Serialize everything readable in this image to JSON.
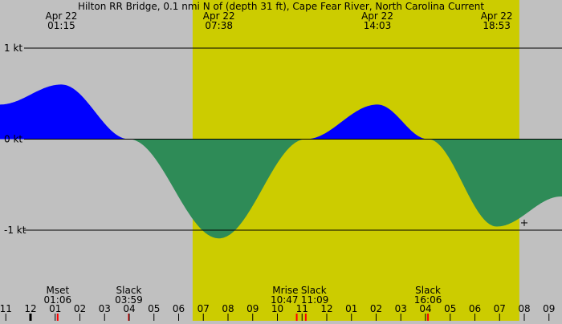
{
  "chart_data": {
    "type": "area",
    "title": "Hilton RR Bridge, 0.1 nmi N of (depth 31 ft), Cape Fear River, North Carolina Current",
    "units": "kt",
    "y_ticks": [
      {
        "value": 1,
        "label": "1 kt"
      },
      {
        "value": 0,
        "label": "0 kt"
      },
      {
        "value": -1,
        "label": "-1 kt"
      }
    ],
    "ylim": [
      -1.7,
      1.5
    ],
    "x_range_hours": [
      -1.24,
      21.5
    ],
    "hour_labels": [
      "11",
      "12",
      "01",
      "02",
      "03",
      "04",
      "05",
      "06",
      "07",
      "08",
      "09",
      "10",
      "11",
      "12",
      "01",
      "02",
      "03",
      "04",
      "05",
      "06",
      "07",
      "08",
      "09"
    ],
    "daylight": {
      "start": "06:34",
      "end": "19:48"
    },
    "extrema_labels": [
      {
        "date": "Apr 22",
        "time": "01:15",
        "hour": 1.25
      },
      {
        "date": "Apr 22",
        "time": "07:38",
        "hour": 7.633
      },
      {
        "date": "Apr 22",
        "time": "14:03",
        "hour": 14.05
      },
      {
        "date": "Apr 22",
        "time": "18:53",
        "hour": 18.883
      }
    ],
    "curve_points": [
      {
        "hour": -1.24,
        "kt": 0.38
      },
      {
        "hour": 1.25,
        "kt": 0.6
      },
      {
        "hour": 3.983,
        "kt": 0
      },
      {
        "hour": 7.633,
        "kt": -1.09
      },
      {
        "hour": 11.15,
        "kt": 0
      },
      {
        "hour": 14.05,
        "kt": 0.38
      },
      {
        "hour": 16.1,
        "kt": 0
      },
      {
        "hour": 18.883,
        "kt": -0.96
      },
      {
        "hour": 21.5,
        "kt": -0.63
      }
    ],
    "events": [
      {
        "name": "Mset",
        "time": "01:06",
        "hour": 1.1
      },
      {
        "name": "Slack",
        "time": "03:59",
        "hour": 3.983
      },
      {
        "name": "Mrise",
        "time": "10:47",
        "hour": 10.783
      },
      {
        "name": "Slack",
        "time": "11:09",
        "hour": 11.15
      },
      {
        "name": "Slack",
        "time": "16:06",
        "hour": 16.1
      }
    ],
    "current_marker": {
      "hour": 20.0,
      "kt": -0.92
    },
    "colors": {
      "flood": "#0000ff",
      "ebb": "#2e8b57",
      "daylight": "#cccc00",
      "night": "#c0c0c0",
      "event_tick": "#ff0000"
    }
  }
}
